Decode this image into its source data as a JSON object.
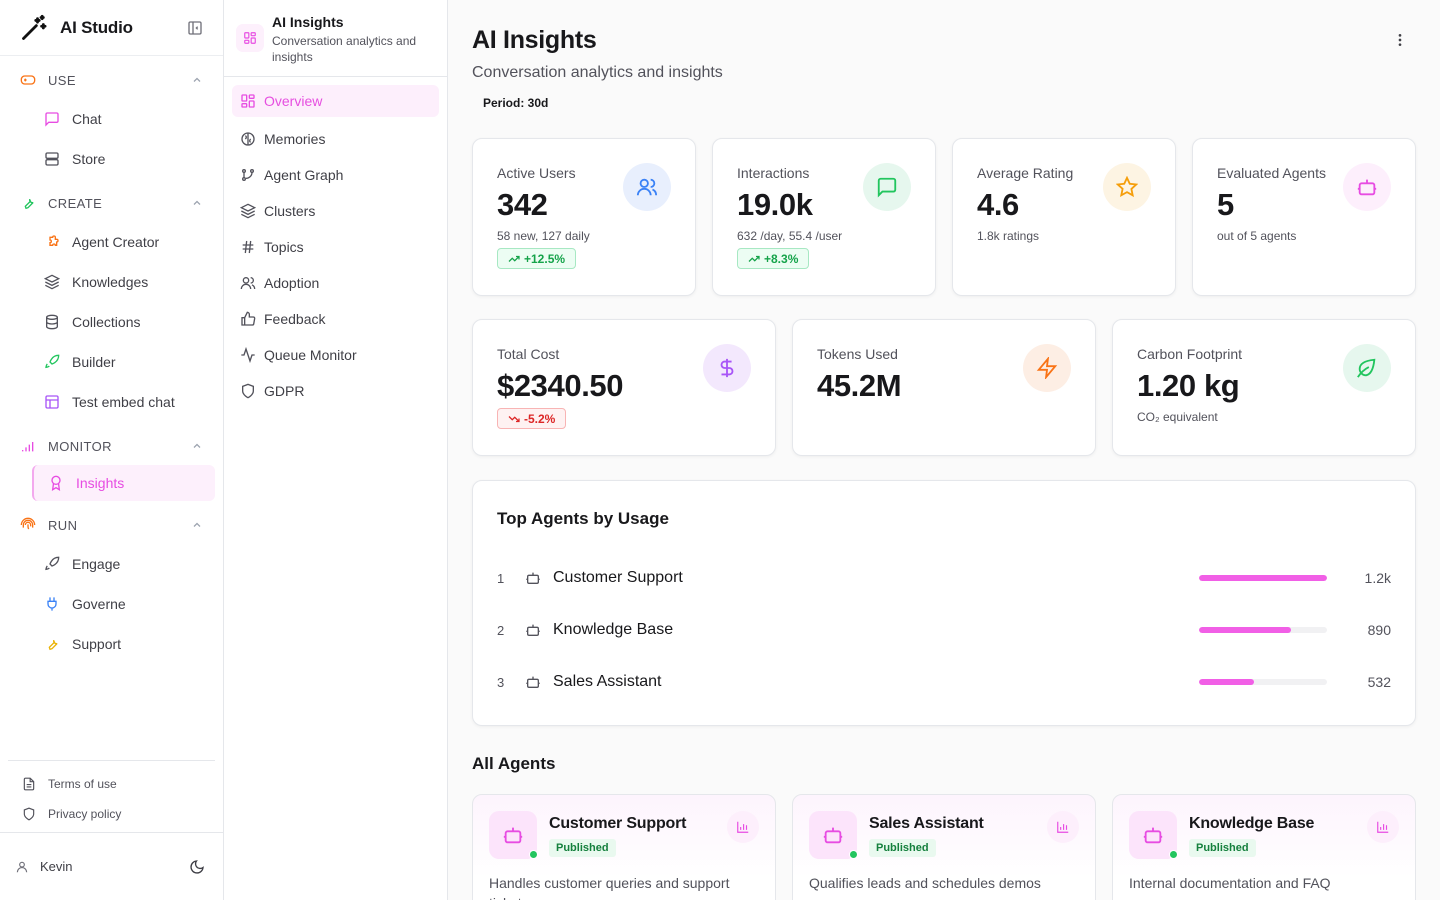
{
  "app": {
    "title": "AI Studio"
  },
  "sidebar": {
    "groups": [
      {
        "label": "USE",
        "items": [
          {
            "label": "Chat"
          },
          {
            "label": "Store"
          }
        ]
      },
      {
        "label": "CREATE",
        "items": [
          {
            "label": "Agent Creator"
          },
          {
            "label": "Knowledges"
          },
          {
            "label": "Collections"
          },
          {
            "label": "Builder"
          },
          {
            "label": "Test embed chat"
          }
        ]
      },
      {
        "label": "MONITOR",
        "items": [
          {
            "label": "Insights"
          }
        ]
      },
      {
        "label": "RUN",
        "items": [
          {
            "label": "Engage"
          },
          {
            "label": "Governe"
          },
          {
            "label": "Support"
          }
        ]
      }
    ],
    "footer": {
      "terms": "Terms of use",
      "privacy": "Privacy policy"
    },
    "user": {
      "name": "Kevin"
    }
  },
  "subpanel": {
    "title": "AI Insights",
    "subtitle": "Conversation analytics and insights",
    "items": [
      {
        "label": "Overview"
      },
      {
        "label": "Memories"
      },
      {
        "label": "Agent Graph"
      },
      {
        "label": "Clusters"
      },
      {
        "label": "Topics"
      },
      {
        "label": "Adoption"
      },
      {
        "label": "Feedback"
      },
      {
        "label": "Queue Monitor"
      },
      {
        "label": "GDPR"
      }
    ]
  },
  "main": {
    "title": "AI Insights",
    "subtitle": "Conversation analytics and insights",
    "period": "Period: 30d",
    "stats": [
      {
        "label": "Active Users",
        "value": "342",
        "sub": "58 new, 127 daily",
        "change": "+12.5%"
      },
      {
        "label": "Interactions",
        "value": "19.0k",
        "sub": "632 /day, 55.4 /user",
        "change": "+8.3%"
      },
      {
        "label": "Average Rating",
        "value": "4.6",
        "sub": "1.8k ratings"
      },
      {
        "label": "Evaluated Agents",
        "value": "5",
        "sub": "out of 5 agents"
      },
      {
        "label": "Total Cost",
        "value": "$2340.50",
        "change": "-5.2%"
      },
      {
        "label": "Tokens Used",
        "value": "45.2M"
      },
      {
        "label": "Carbon Footprint",
        "value": "1.20 kg",
        "sub": "CO₂ equivalent"
      }
    ],
    "top_agents": {
      "title": "Top Agents by Usage",
      "rows": [
        {
          "rank": "1",
          "name": "Customer Support",
          "value": "1.2k",
          "share": 1.0
        },
        {
          "rank": "2",
          "name": "Knowledge Base",
          "value": "890",
          "share": 0.72
        },
        {
          "rank": "3",
          "name": "Sales Assistant",
          "value": "532",
          "share": 0.43
        }
      ]
    },
    "all_agents": {
      "title": "All Agents",
      "cards": [
        {
          "name": "Customer Support",
          "status": "Published",
          "desc": "Handles customer queries and support tickets"
        },
        {
          "name": "Sales Assistant",
          "status": "Published",
          "desc": "Qualifies leads and schedules demos"
        },
        {
          "name": "Knowledge Base",
          "status": "Published",
          "desc": "Internal documentation and FAQ"
        }
      ]
    }
  },
  "colors": {
    "accent": "#e74ce2",
    "success": "#15a34a",
    "danger": "#dc2626"
  }
}
